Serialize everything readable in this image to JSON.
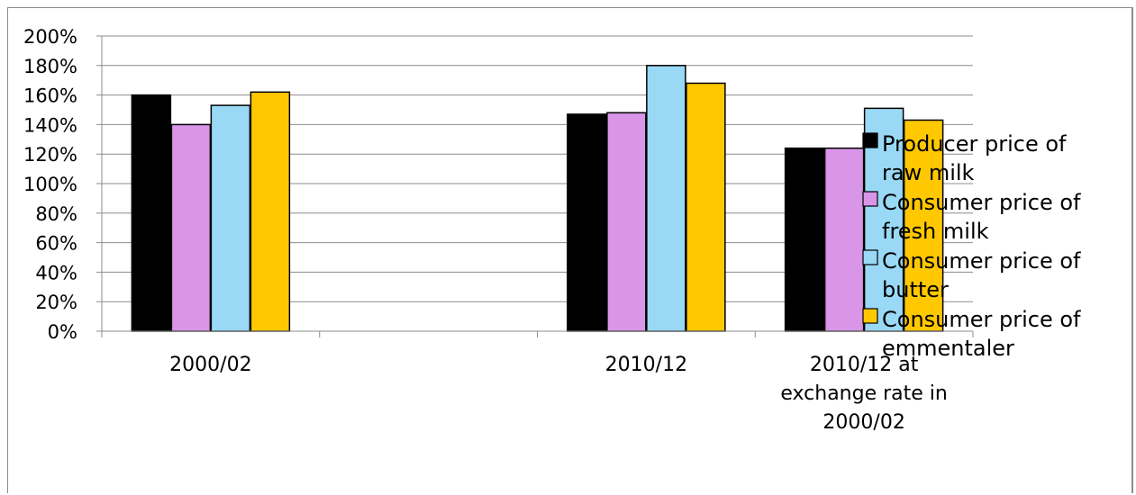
{
  "chart_data": {
    "type": "bar",
    "categories": [
      "2000/02",
      "",
      "2010/12",
      "2010/12 at exchange rate in 2000/02"
    ],
    "category_lines": [
      [
        "2000/02"
      ],
      [],
      [
        "2010/12"
      ],
      [
        "2010/12 at",
        "exchange rate in",
        "2000/02"
      ]
    ],
    "series": [
      {
        "name": "Producer price of raw milk",
        "legend_lines": [
          "Producer price of",
          "raw milk"
        ],
        "color": "#000000",
        "values": [
          160,
          null,
          147,
          124
        ]
      },
      {
        "name": "Consumer price of fresh milk",
        "legend_lines": [
          "Consumer price of",
          "fresh milk"
        ],
        "color": "#d995e8",
        "values": [
          140,
          null,
          148,
          124
        ]
      },
      {
        "name": "Consumer price of butter",
        "legend_lines": [
          "Consumer price of",
          "butter"
        ],
        "color": "#99d9f5",
        "values": [
          153,
          null,
          180,
          151
        ]
      },
      {
        "name": "Consumer price of emmentaler",
        "legend_lines": [
          "Consumer price of",
          "emmentaler"
        ],
        "color": "#ffc800",
        "values": [
          162,
          null,
          168,
          143
        ]
      }
    ],
    "ylim": [
      0,
      200
    ],
    "yticks": [
      "0%",
      "20%",
      "40%",
      "60%",
      "80%",
      "100%",
      "120%",
      "140%",
      "160%",
      "180%",
      "200%"
    ],
    "grid": true,
    "legend_position": "right",
    "title": "",
    "xlabel": "",
    "ylabel": ""
  }
}
